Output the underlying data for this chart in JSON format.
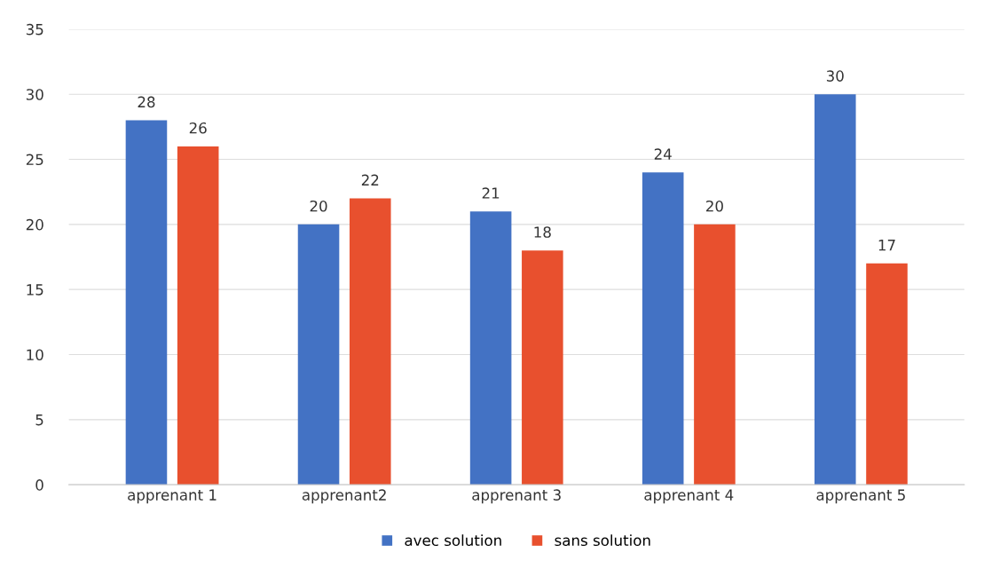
{
  "chart_data": {
    "type": "bar",
    "categories": [
      "apprenant 1",
      "apprenant2",
      "apprenant 3",
      "apprenant 4",
      "apprenant 5"
    ],
    "series": [
      {
        "name": "avec solution",
        "color": "#4372c4",
        "values": [
          28,
          20,
          21,
          24,
          30
        ]
      },
      {
        "name": "sans solution",
        "color": "#e8502e",
        "values": [
          26,
          22,
          18,
          20,
          17
        ]
      }
    ],
    "ylim": [
      0,
      35
    ],
    "yticks": [
      0,
      5,
      10,
      15,
      20,
      25,
      30,
      35
    ],
    "grid": "y",
    "legend": "bottom",
    "data_labels": true
  }
}
